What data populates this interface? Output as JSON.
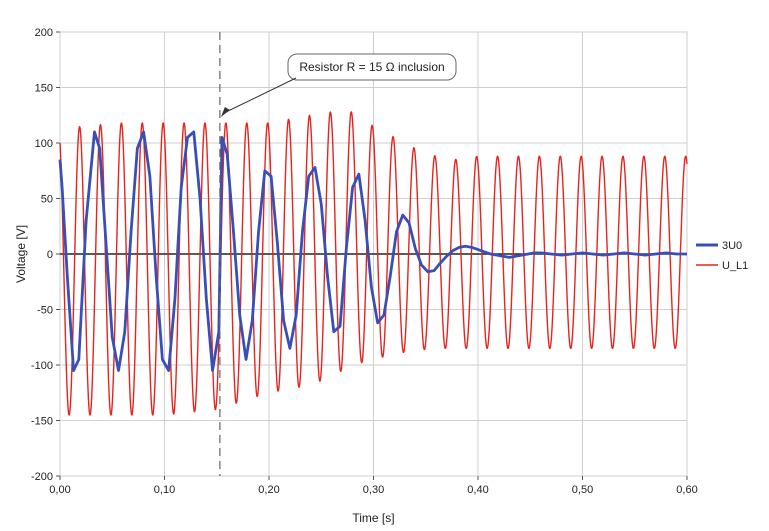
{
  "chart_data": {
    "type": "line",
    "title": "",
    "xlabel": "Time [s]",
    "ylabel": "Voltage [V]",
    "xlim": [
      0,
      0.6
    ],
    "ylim": [
      -200,
      200
    ],
    "x_ticks": [
      0,
      0.1,
      0.2,
      0.3,
      0.4,
      0.5,
      0.6
    ],
    "x_tick_labels": [
      "0,00",
      "0,10",
      "0,20",
      "0,30",
      "0,40",
      "0,50",
      "0,60"
    ],
    "y_ticks": [
      -200,
      -150,
      -100,
      -50,
      0,
      50,
      100,
      150,
      200
    ],
    "y_tick_labels": [
      "-200",
      "-150",
      "-100",
      "-50",
      "0",
      "50",
      "100",
      "150",
      "200"
    ],
    "grid": true,
    "legend_position": "right",
    "annotation": {
      "text": "Resistor R = 15 Ω inclusion",
      "x": 0.153
    },
    "series": [
      {
        "name": "3U0",
        "color": "#3a4fb5",
        "x": [
          0,
          0.002,
          0.007,
          0.013,
          0.018,
          0.025,
          0.033,
          0.038,
          0.044,
          0.05,
          0.056,
          0.062,
          0.068,
          0.074,
          0.08,
          0.086,
          0.092,
          0.098,
          0.104,
          0.11,
          0.116,
          0.122,
          0.128,
          0.134,
          0.14,
          0.146,
          0.152,
          0.155,
          0.16,
          0.166,
          0.172,
          0.178,
          0.184,
          0.19,
          0.196,
          0.202,
          0.208,
          0.214,
          0.22,
          0.226,
          0.232,
          0.238,
          0.244,
          0.25,
          0.256,
          0.262,
          0.268,
          0.274,
          0.28,
          0.286,
          0.292,
          0.298,
          0.304,
          0.31,
          0.316,
          0.322,
          0.328,
          0.334,
          0.34,
          0.346,
          0.352,
          0.358,
          0.364,
          0.37,
          0.376,
          0.382,
          0.388,
          0.394,
          0.4,
          0.406,
          0.412,
          0.418,
          0.424,
          0.43,
          0.436,
          0.442,
          0.448,
          0.454,
          0.46,
          0.47,
          0.48,
          0.49,
          0.5,
          0.51,
          0.52,
          0.53,
          0.54,
          0.55,
          0.56,
          0.57,
          0.58,
          0.59,
          0.6
        ],
        "y": [
          85,
          60,
          -20,
          -105,
          -95,
          30,
          110,
          95,
          10,
          -75,
          -105,
          -70,
          20,
          95,
          110,
          70,
          -20,
          -95,
          -105,
          -40,
          60,
          105,
          110,
          50,
          -40,
          -105,
          -70,
          105,
          90,
          20,
          -55,
          -95,
          -60,
          20,
          75,
          70,
          10,
          -60,
          -85,
          -55,
          20,
          70,
          78,
          45,
          -20,
          -70,
          -65,
          5,
          60,
          72,
          30,
          -30,
          -62,
          -55,
          -20,
          20,
          35,
          28,
          5,
          -10,
          -16,
          -15,
          -8,
          -2,
          3,
          6,
          7,
          6,
          4,
          2,
          0,
          -1,
          -2,
          -3,
          -2,
          -1,
          0,
          1,
          1,
          0,
          -1,
          0,
          1,
          0,
          -1,
          0,
          1,
          0,
          -1,
          0,
          1,
          0,
          0
        ]
      },
      {
        "name": "U_L1",
        "color": "#e8231c",
        "amplitude_envelope": {
          "x": [
            0,
            0.02,
            0.06,
            0.1,
            0.15,
            0.2,
            0.24,
            0.26,
            0.28,
            0.3,
            0.32,
            0.34,
            0.36,
            0.38,
            0.4,
            0.42,
            0.45,
            0.5,
            0.55,
            0.6
          ],
          "y_max": [
            110,
            115,
            118,
            118,
            118,
            118,
            125,
            128,
            128,
            115,
            105,
            95,
            88,
            85,
            88,
            88,
            88,
            88,
            88,
            88
          ],
          "y_min": [
            -145,
            -145,
            -145,
            -145,
            -140,
            -125,
            -118,
            -110,
            -100,
            -95,
            -90,
            -87,
            -85,
            -85,
            -85,
            -85,
            -85,
            -85,
            -85,
            -85
          ]
        },
        "frequency_hz": 50
      }
    ]
  }
}
